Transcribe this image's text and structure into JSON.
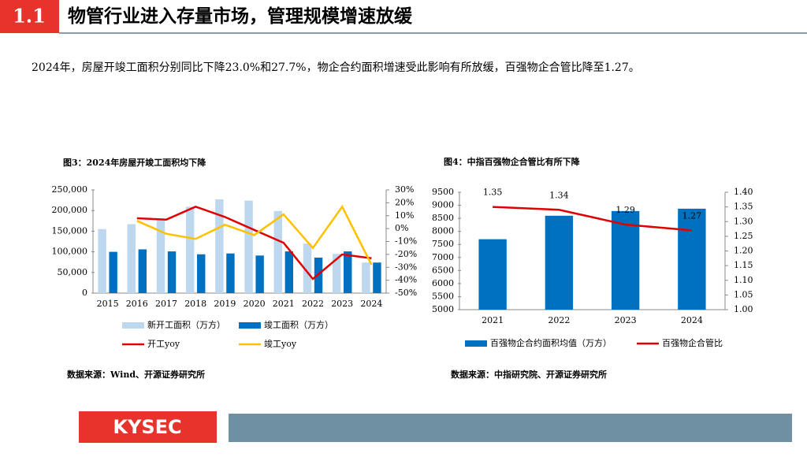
{
  "slide": {
    "number": "1.1",
    "title": "物管行业进入存量市场，管理规模增速放缓",
    "body": "2024年，房屋开竣工面积分别同比下降23.0%和27.7%，物企合约面积增速受此影响有所放缓，百强物企合管比降至1.27。",
    "logo": "KYSEC"
  },
  "chart_data": [
    {
      "type": "bar",
      "title": "图3：2024年房屋开竣工面积均下降",
      "source": "数据来源：Wind、开源证券研究所",
      "categories": [
        "2015",
        "2016",
        "2017",
        "2018",
        "2019",
        "2020",
        "2021",
        "2022",
        "2023",
        "2024"
      ],
      "series": [
        {
          "name": "新开工面积（万方）",
          "color": "#bdd7ee",
          "values": [
            155000,
            167000,
            178000,
            209000,
            227000,
            224000,
            199000,
            120000,
            95000,
            74000
          ]
        },
        {
          "name": "竣工面积（万方）",
          "color": "#0070c0",
          "values": [
            100000,
            106000,
            101000,
            94000,
            96000,
            91000,
            101000,
            86000,
            101000,
            74000
          ]
        },
        {
          "name": "开工yoy",
          "type": "line",
          "axis": "y2",
          "color": "#e00000",
          "values": [
            null,
            8,
            7,
            17,
            9,
            -1,
            -11,
            -39,
            -20,
            -23
          ]
        },
        {
          "name": "竣工yoy",
          "type": "line",
          "axis": "y2",
          "color": "#ffc000",
          "values": [
            null,
            6,
            -4,
            -8,
            3,
            -5,
            11,
            -15,
            17,
            -28
          ]
        }
      ],
      "ylim": [
        0,
        250000
      ],
      "yticks": [
        0,
        {
          "value": 50000,
          "label": "50,000"
        },
        {
          "value": 100000,
          "label": "100,000"
        },
        {
          "value": 150000,
          "label": "150,000"
        },
        {
          "value": 200000,
          "label": "200,000"
        },
        {
          "value": 250000,
          "label": "250,000"
        }
      ],
      "y2lim": [
        -50,
        30
      ],
      "y2ticks": [
        {
          "value": -50,
          "label": "-50%"
        },
        {
          "value": -40,
          "label": "-40%"
        },
        {
          "value": -30,
          "label": "-30%"
        },
        {
          "value": -20,
          "label": "-20%"
        },
        {
          "value": -10,
          "label": "-10%"
        },
        {
          "value": 0,
          "label": "0%"
        },
        {
          "value": 10,
          "label": "10%"
        },
        {
          "value": 20,
          "label": "20%"
        },
        {
          "value": 30,
          "label": "30%"
        }
      ]
    },
    {
      "type": "bar",
      "title": "图4：中指百强物企合管比有所下降",
      "source": "数据来源：中指研究院、开源证券研究所",
      "categories": [
        "2021",
        "2022",
        "2023",
        "2024"
      ],
      "series": [
        {
          "name": "百强物企合约面积均值（万方）",
          "color": "#0070c0",
          "values": [
            7700,
            8600,
            8780,
            8870
          ]
        },
        {
          "name": "百强物企合管比",
          "type": "line",
          "axis": "y2",
          "color": "#e00000",
          "values": [
            1.35,
            1.34,
            1.29,
            1.27
          ],
          "value_labels": [
            "1.35",
            "1.34",
            "1.29",
            "1.27"
          ]
        }
      ],
      "ylim": [
        5000,
        9500
      ],
      "yticks": [
        5000,
        5500,
        6000,
        6500,
        7000,
        7500,
        8000,
        8500,
        9000,
        9500
      ],
      "y2lim": [
        1.0,
        1.4
      ],
      "y2ticks": [
        {
          "value": 1.0,
          "label": "1.00"
        },
        {
          "value": 1.05,
          "label": "1.05"
        },
        {
          "value": 1.1,
          "label": "1.10"
        },
        {
          "value": 1.15,
          "label": "1.15"
        },
        {
          "value": 1.2,
          "label": "1.20"
        },
        {
          "value": 1.25,
          "label": "1.25"
        },
        {
          "value": 1.3,
          "label": "1.30"
        },
        {
          "value": 1.35,
          "label": "1.35"
        },
        {
          "value": 1.4,
          "label": "1.40"
        }
      ]
    }
  ]
}
